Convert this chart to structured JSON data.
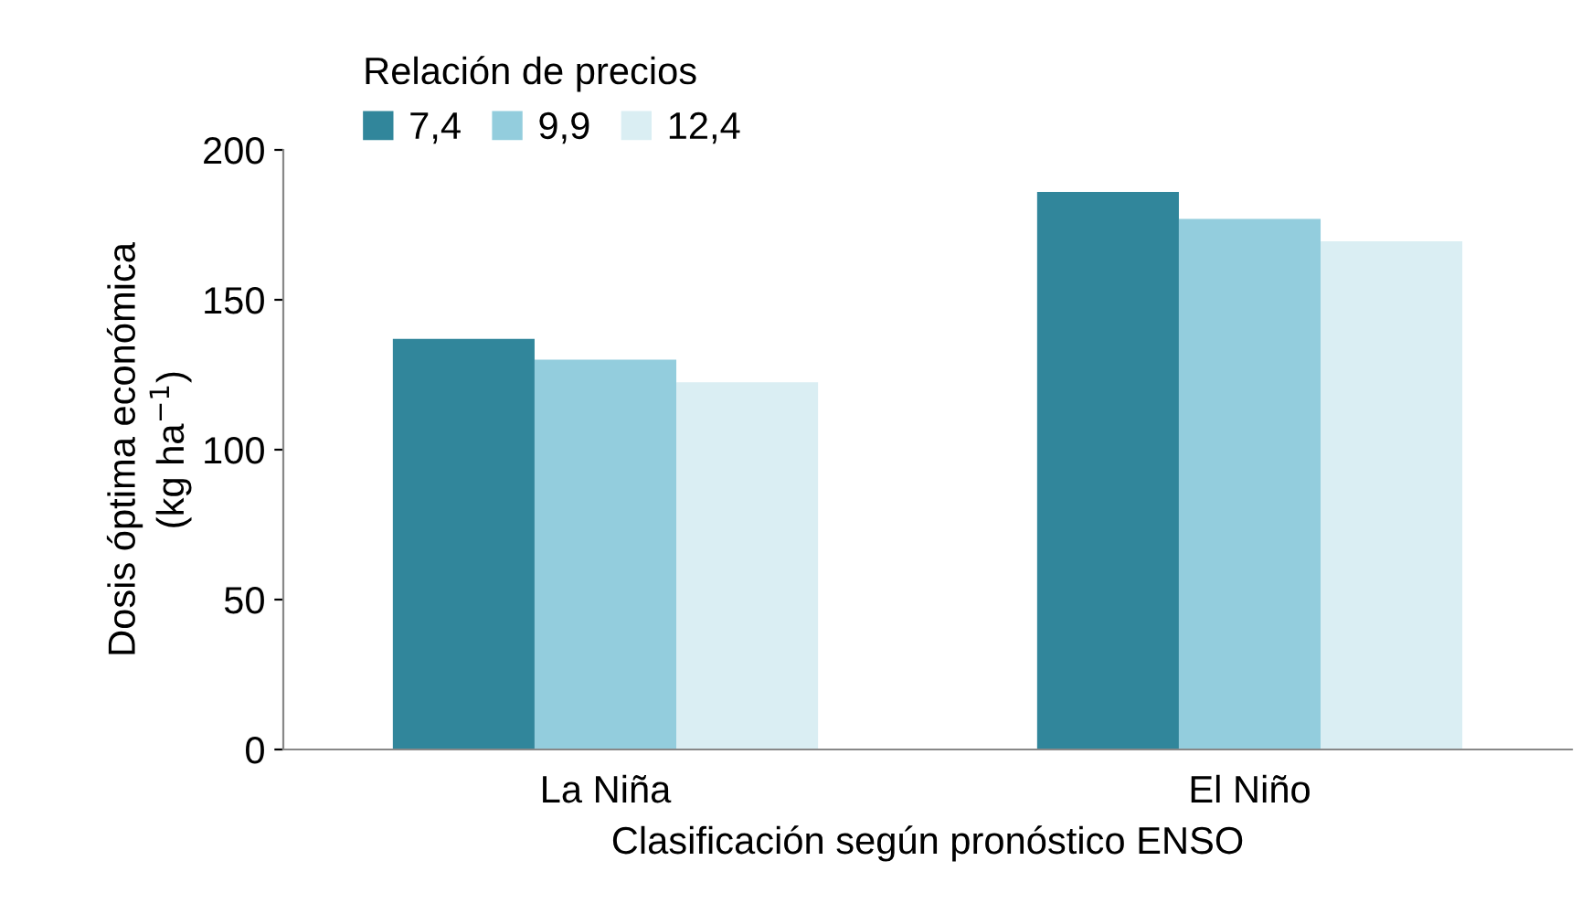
{
  "chart_data": {
    "type": "bar",
    "xlabel": "Clasificación según pronóstico ENSO",
    "ylabel": "Dosis óptima económica\n(kg ha$^{−1}$)",
    "legend_title": "Relación de precios",
    "categories": [
      "La Niña",
      "El Niño"
    ],
    "series": [
      {
        "name": "7,4",
        "color": "#31869b",
        "values": [
          137,
          186
        ]
      },
      {
        "name": "9,9",
        "color": "#93cddd",
        "values": [
          130,
          177
        ]
      },
      {
        "name": "12,4",
        "color": "#daeef3",
        "values": [
          122.5,
          169.5
        ]
      }
    ],
    "ylim": [
      0,
      200
    ],
    "yticks": [
      0,
      50,
      100,
      150,
      200
    ],
    "grid": false,
    "legend": "top"
  }
}
